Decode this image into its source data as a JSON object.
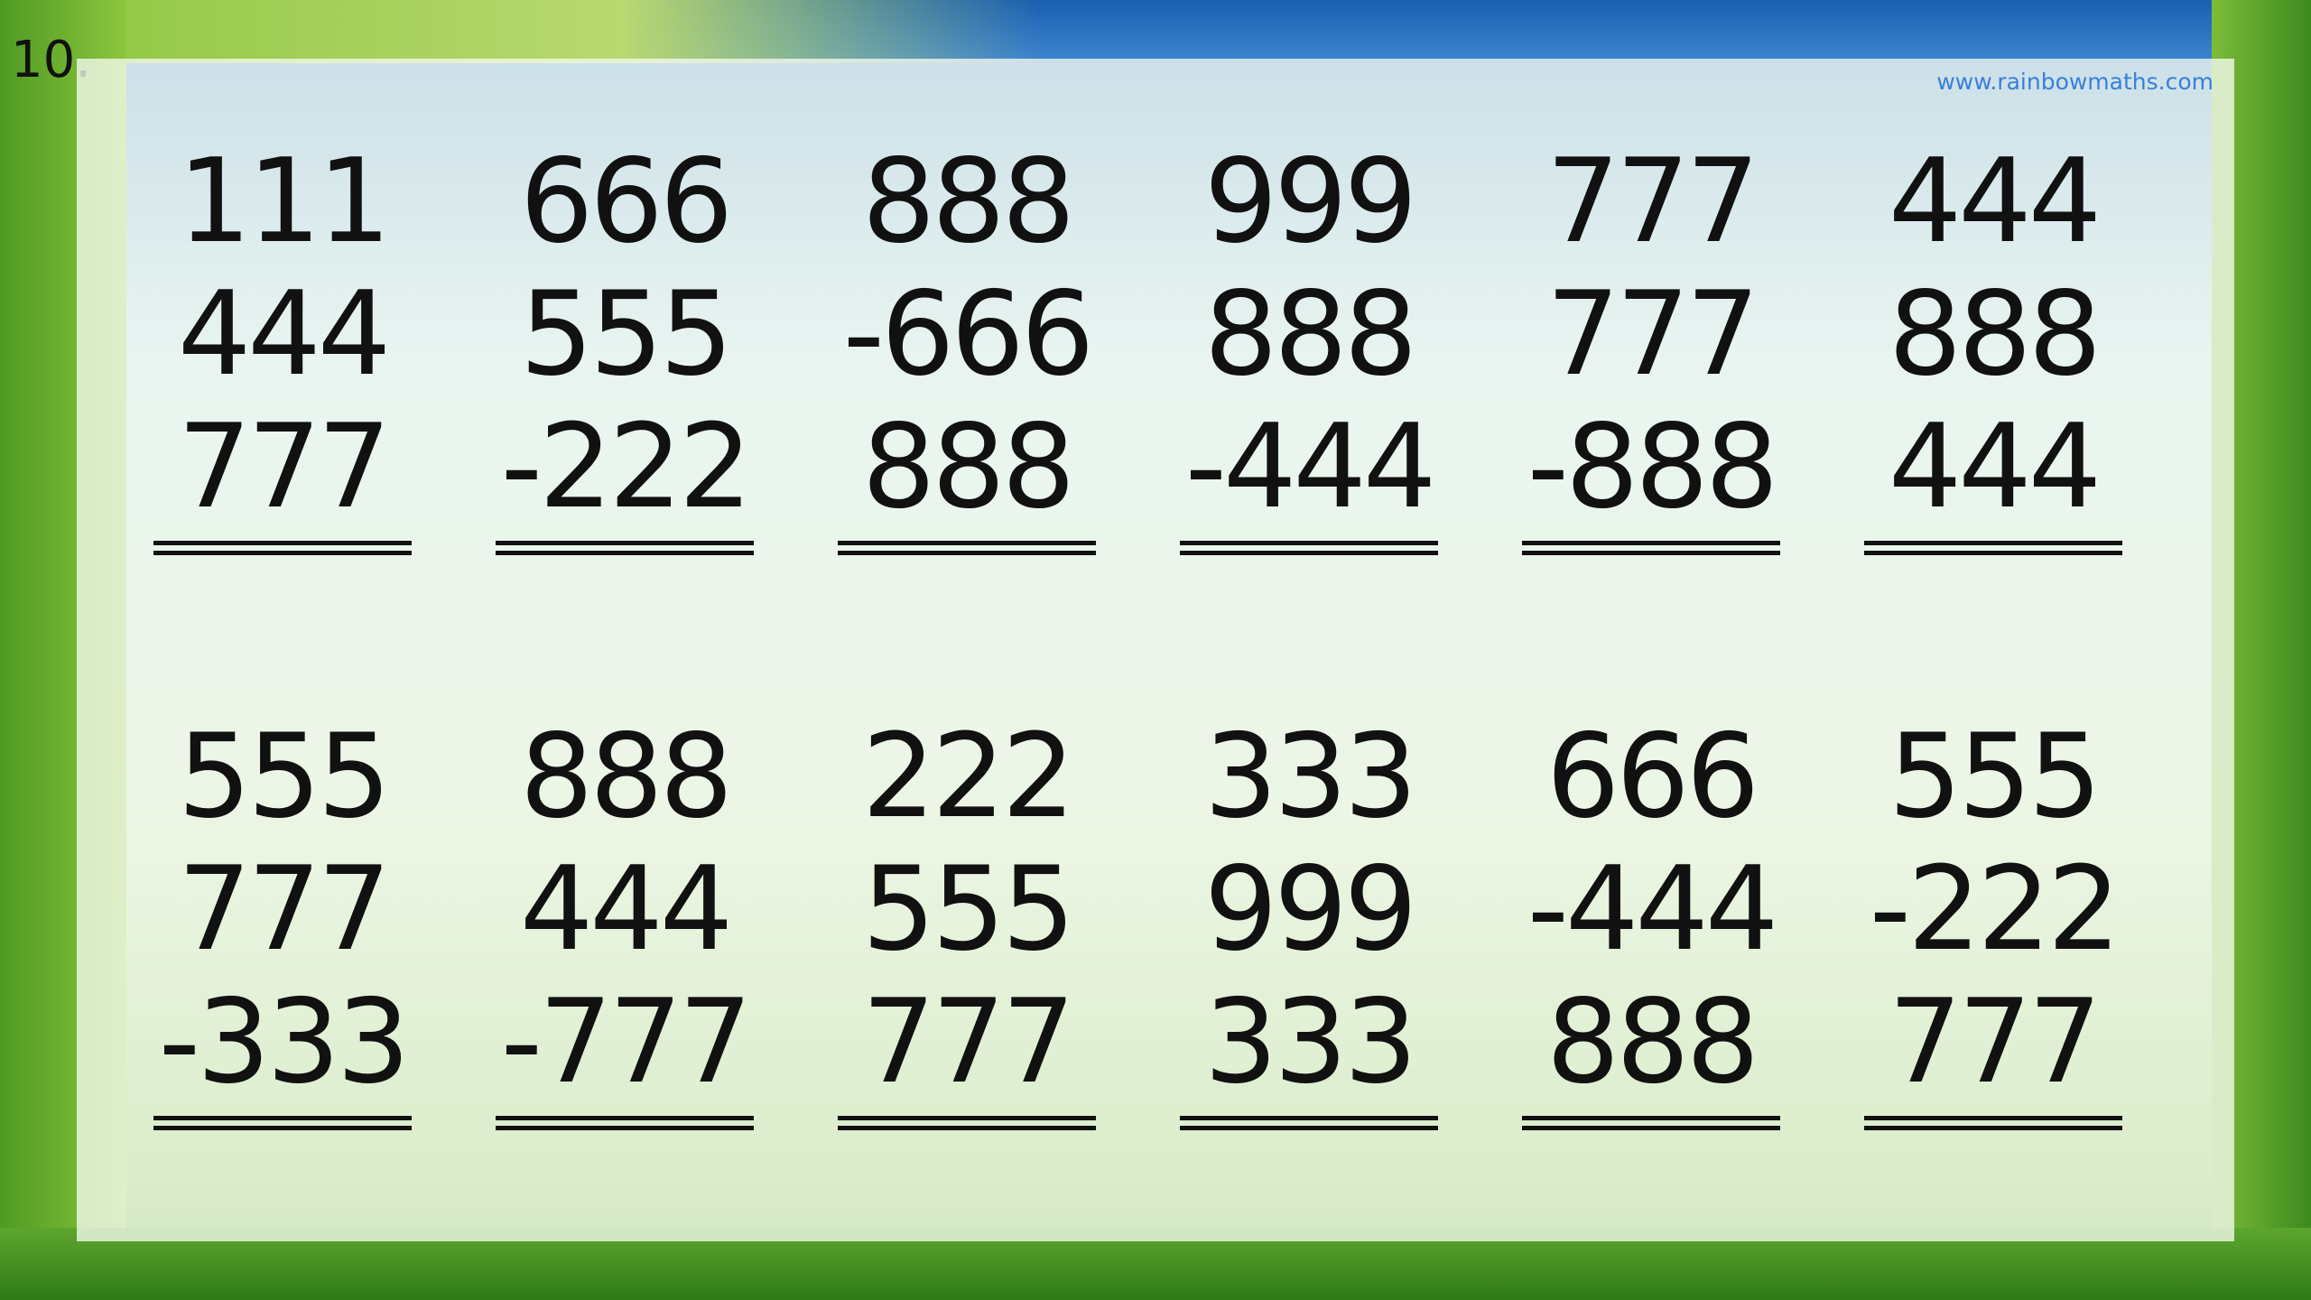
{
  "slide_number": "10.",
  "website": "www.rainbowmaths.com",
  "problems": [
    {
      "lines": [
        "111",
        "444",
        "777"
      ]
    },
    {
      "lines": [
        "666",
        "555",
        "-222"
      ]
    },
    {
      "lines": [
        "888",
        "-666",
        "888"
      ]
    },
    {
      "lines": [
        "999",
        "888",
        "-444"
      ]
    },
    {
      "lines": [
        "777",
        "777",
        "-888"
      ]
    },
    {
      "lines": [
        "444",
        "888",
        "444"
      ]
    },
    {
      "lines": [
        "555",
        "777",
        "-333"
      ]
    },
    {
      "lines": [
        "888",
        "444",
        "-777"
      ]
    },
    {
      "lines": [
        "222",
        "555",
        "777"
      ]
    },
    {
      "lines": [
        "333",
        "999",
        "333"
      ]
    },
    {
      "lines": [
        "666",
        "-444",
        "888"
      ]
    },
    {
      "lines": [
        "555",
        "-222",
        "777"
      ]
    }
  ]
}
